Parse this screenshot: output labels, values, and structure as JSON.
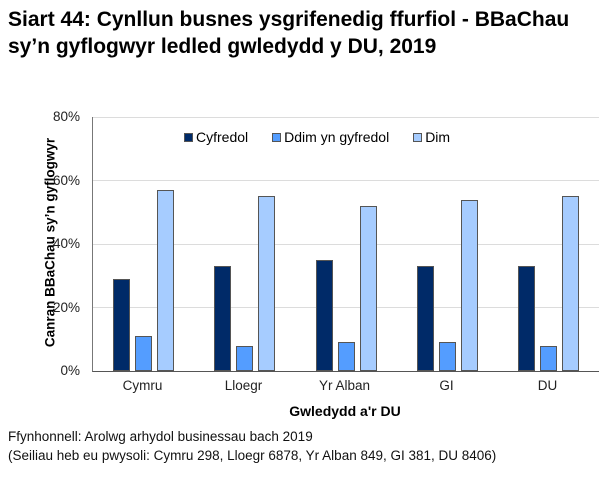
{
  "title": "Siart 44: Cynllun busnes ysgrifenedig ffurfiol - BBaChau sy’n gyflogwyr ledled gwledydd y DU, 2019",
  "source_line1": "Ffynhonnell: Arolwg arhydol businessau bach 2019",
  "source_line2": "(Seiliau heb eu pwysoli: Cymru 298, Lloegr 6878, Yr Alban 849, GI 381, DU 8406)",
  "colors": {
    "Cyfredol": "#002a68",
    "Ddim yn gyfredol": "#549dff",
    "Dim": "#a6ccff"
  },
  "chart_data": {
    "type": "bar",
    "title": "Siart 44: Cynllun busnes ysgrifenedig ffurfiol - BBaChau sy’n gyflogwyr ledled gwledydd y DU, 2019",
    "xlabel": "Gwledydd a'r DU",
    "ylabel": "Canran BBaChau sy’n gyflogwyr",
    "categories": [
      "Cymru",
      "Lloegr",
      "Yr Alban",
      "GI",
      "DU"
    ],
    "series": [
      {
        "name": "Cyfredol",
        "values": [
          29,
          33,
          35,
          33,
          33
        ]
      },
      {
        "name": "Ddim yn gyfredol",
        "values": [
          11,
          8,
          9,
          9,
          8
        ]
      },
      {
        "name": "Dim",
        "values": [
          57,
          55,
          52,
          54,
          55
        ]
      }
    ],
    "ylim": [
      0,
      80
    ],
    "yticks": [
      "0%",
      "20%",
      "40%",
      "60%",
      "80%"
    ],
    "grid": true,
    "legend_position": "top-inside"
  }
}
